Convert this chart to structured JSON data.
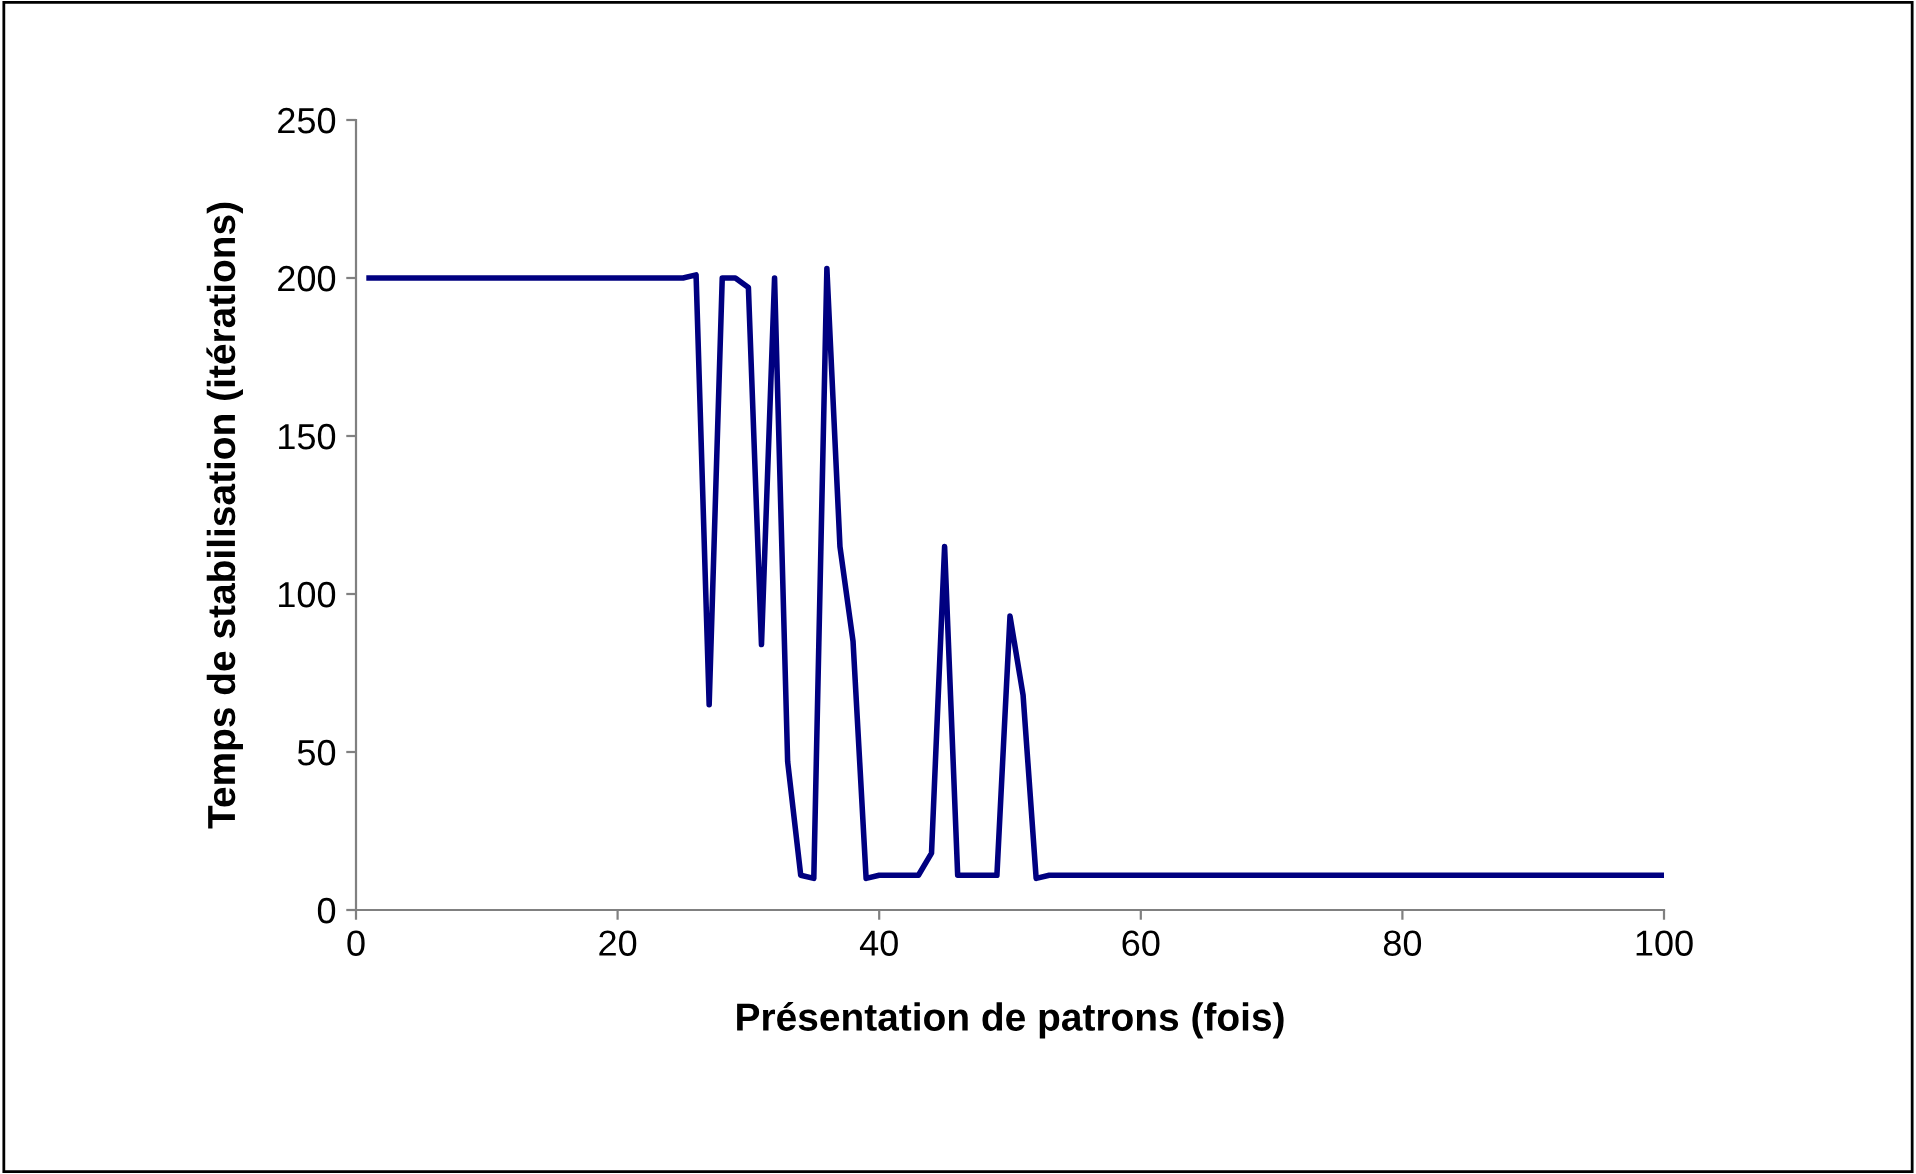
{
  "chart_data": {
    "type": "line",
    "xlabel": "Présentation de patrons (fois)",
    "ylabel": "Temps de stabilisation (itérations)",
    "x": [
      1,
      2,
      3,
      4,
      5,
      6,
      7,
      8,
      9,
      10,
      11,
      12,
      13,
      14,
      15,
      16,
      17,
      18,
      19,
      20,
      21,
      22,
      23,
      24,
      25,
      26,
      27,
      28,
      29,
      30,
      31,
      32,
      33,
      34,
      35,
      36,
      37,
      38,
      39,
      40,
      41,
      42,
      43,
      44,
      45,
      46,
      47,
      48,
      49,
      50,
      51,
      52,
      53,
      54,
      55,
      56,
      57,
      58,
      59,
      60,
      61,
      62,
      63,
      64,
      65,
      66,
      67,
      68,
      69,
      70,
      71,
      72,
      73,
      74,
      75,
      76,
      77,
      78,
      79,
      80,
      81,
      82,
      83,
      84,
      85,
      86,
      87,
      88,
      89,
      90,
      91,
      92,
      93,
      94,
      95,
      96,
      97,
      98,
      99,
      100
    ],
    "series": [
      {
        "color": "#000080",
        "values": [
          200,
          200,
          200,
          200,
          200,
          200,
          200,
          200,
          200,
          200,
          200,
          200,
          200,
          200,
          200,
          200,
          200,
          200,
          200,
          200,
          200,
          200,
          200,
          200,
          200,
          201,
          65,
          200,
          200,
          197,
          84,
          200,
          47,
          11,
          10,
          203,
          115,
          85,
          10,
          11,
          11,
          11,
          11,
          18,
          115,
          11,
          11,
          11,
          11,
          93,
          68,
          10,
          11,
          11,
          11,
          11,
          11,
          11,
          11,
          11,
          11,
          11,
          11,
          11,
          11,
          11,
          11,
          11,
          11,
          11,
          11,
          11,
          11,
          11,
          11,
          11,
          11,
          11,
          11,
          11,
          11,
          11,
          11,
          11,
          11,
          11,
          11,
          11,
          11,
          11,
          11,
          11,
          11,
          11,
          11,
          11,
          11,
          11,
          11,
          11
        ]
      }
    ],
    "xlim": [
      0,
      100
    ],
    "xticks": [
      0,
      20,
      40,
      60,
      80,
      100
    ],
    "ylim": [
      0,
      250
    ],
    "yticks": [
      0,
      50,
      100,
      150,
      200,
      250
    ],
    "grid": false,
    "legend": false
  }
}
